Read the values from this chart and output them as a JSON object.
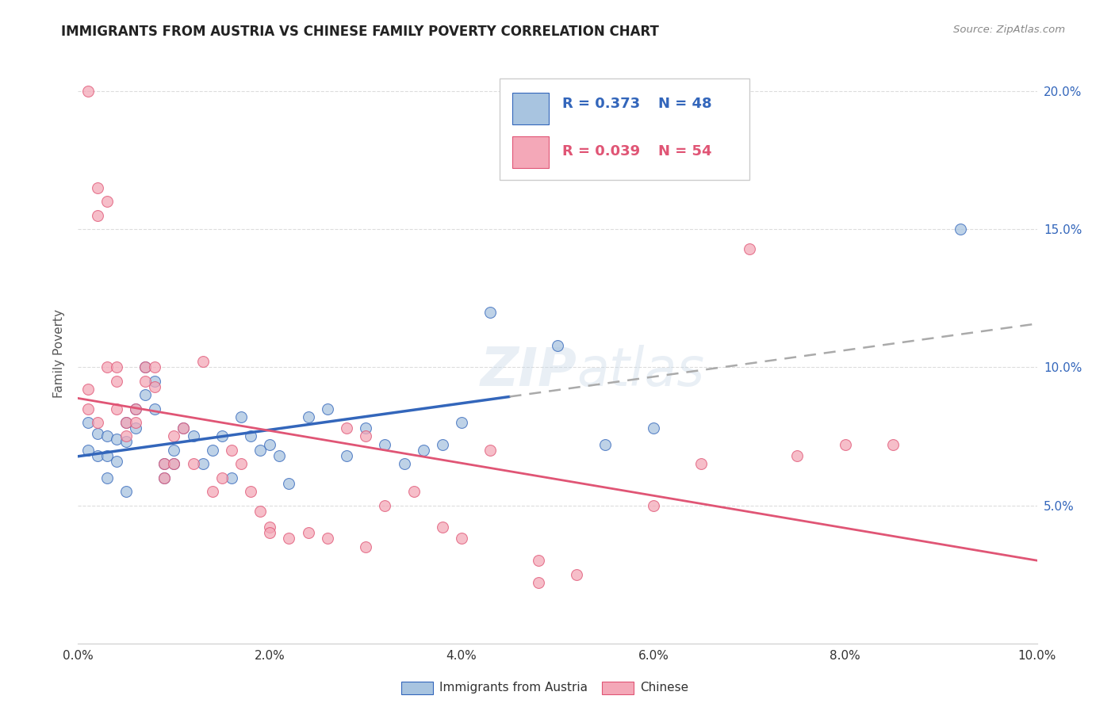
{
  "title": "IMMIGRANTS FROM AUSTRIA VS CHINESE FAMILY POVERTY CORRELATION CHART",
  "source": "Source: ZipAtlas.com",
  "ylabel": "Family Poverty",
  "legend_blue_r": "R = 0.373",
  "legend_blue_n": "N = 48",
  "legend_pink_r": "R = 0.039",
  "legend_pink_n": "N = 54",
  "legend_label_blue": "Immigrants from Austria",
  "legend_label_pink": "Chinese",
  "background_color": "#ffffff",
  "grid_color": "#dddddd",
  "blue_fill": "#a8c4e0",
  "pink_fill": "#f4a8b8",
  "line_blue": "#3366bb",
  "line_pink": "#e05575",
  "line_dash_color": "#aaaaaa",
  "austria_x": [
    0.001,
    0.001,
    0.002,
    0.002,
    0.003,
    0.003,
    0.003,
    0.004,
    0.004,
    0.005,
    0.005,
    0.005,
    0.006,
    0.006,
    0.007,
    0.007,
    0.008,
    0.008,
    0.009,
    0.009,
    0.01,
    0.01,
    0.011,
    0.012,
    0.013,
    0.014,
    0.015,
    0.016,
    0.017,
    0.018,
    0.019,
    0.02,
    0.021,
    0.022,
    0.024,
    0.026,
    0.028,
    0.03,
    0.032,
    0.034,
    0.036,
    0.038,
    0.04,
    0.043,
    0.05,
    0.055,
    0.06,
    0.092
  ],
  "austria_y": [
    0.08,
    0.07,
    0.076,
    0.068,
    0.075,
    0.068,
    0.06,
    0.074,
    0.066,
    0.08,
    0.073,
    0.055,
    0.085,
    0.078,
    0.09,
    0.1,
    0.095,
    0.085,
    0.065,
    0.06,
    0.07,
    0.065,
    0.078,
    0.075,
    0.065,
    0.07,
    0.075,
    0.06,
    0.082,
    0.075,
    0.07,
    0.072,
    0.068,
    0.058,
    0.082,
    0.085,
    0.068,
    0.078,
    0.072,
    0.065,
    0.07,
    0.072,
    0.08,
    0.12,
    0.108,
    0.072,
    0.078,
    0.15
  ],
  "chinese_x": [
    0.001,
    0.001,
    0.001,
    0.002,
    0.002,
    0.002,
    0.003,
    0.003,
    0.004,
    0.004,
    0.004,
    0.005,
    0.005,
    0.006,
    0.006,
    0.007,
    0.007,
    0.008,
    0.008,
    0.009,
    0.009,
    0.01,
    0.01,
    0.011,
    0.012,
    0.013,
    0.014,
    0.015,
    0.016,
    0.017,
    0.018,
    0.019,
    0.02,
    0.022,
    0.024,
    0.026,
    0.028,
    0.03,
    0.032,
    0.035,
    0.038,
    0.04,
    0.043,
    0.048,
    0.052,
    0.06,
    0.065,
    0.07,
    0.075,
    0.08,
    0.085,
    0.048,
    0.03,
    0.02
  ],
  "chinese_y": [
    0.085,
    0.092,
    0.2,
    0.08,
    0.165,
    0.155,
    0.1,
    0.16,
    0.095,
    0.1,
    0.085,
    0.08,
    0.075,
    0.085,
    0.08,
    0.1,
    0.095,
    0.1,
    0.093,
    0.065,
    0.06,
    0.075,
    0.065,
    0.078,
    0.065,
    0.102,
    0.055,
    0.06,
    0.07,
    0.065,
    0.055,
    0.048,
    0.042,
    0.038,
    0.04,
    0.038,
    0.078,
    0.075,
    0.05,
    0.055,
    0.042,
    0.038,
    0.07,
    0.03,
    0.025,
    0.05,
    0.065,
    0.143,
    0.068,
    0.072,
    0.072,
    0.022,
    0.035,
    0.04
  ],
  "xlim": [
    0.0,
    0.1
  ],
  "ylim": [
    0.0,
    0.21
  ],
  "yticks": [
    0.05,
    0.1,
    0.15,
    0.2
  ],
  "xticks": [
    0.0,
    0.02,
    0.04,
    0.06,
    0.08,
    0.1
  ]
}
